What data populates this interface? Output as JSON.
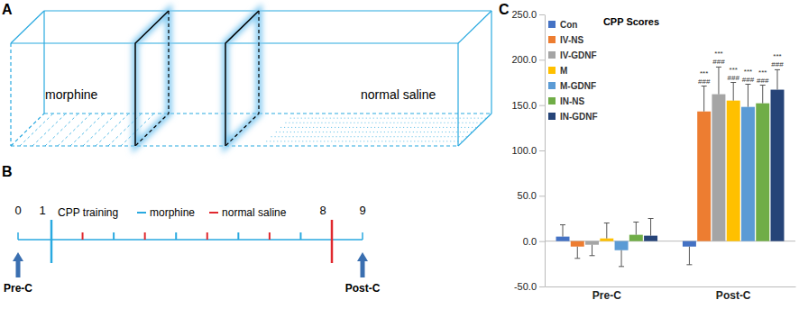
{
  "panel_a": {
    "label": "A",
    "left_chamber": "morphine",
    "right_chamber": "normal saline"
  },
  "panel_b": {
    "label": "B",
    "training_label": "CPP training",
    "legend": [
      {
        "name": "morphine",
        "color": "#29a9e0"
      },
      {
        "name": "normal saline",
        "color": "#e0282e"
      }
    ],
    "day_labels": [
      "0",
      "1",
      "8",
      "9"
    ],
    "sessions": [
      "morphine",
      "normal saline",
      "morphine",
      "normal saline",
      "morphine",
      "normal saline",
      "morphine",
      "normal saline",
      "morphine",
      "normal saline"
    ],
    "test_labels": [
      "Pre-C",
      "Post-C"
    ]
  },
  "panel_c": {
    "label": "C"
  },
  "chart_data": {
    "type": "bar",
    "title": "CPP Scores",
    "categories": [
      "Pre-C",
      "Post-C"
    ],
    "series": [
      {
        "name": "Con",
        "color": "#4472c4",
        "values": [
          5,
          -6
        ],
        "errors": [
          13,
          20
        ],
        "annotations": [
          null,
          null
        ]
      },
      {
        "name": "IV-NS",
        "color": "#ed7d31",
        "values": [
          -6,
          143
        ],
        "errors": [
          13,
          28
        ],
        "annotations": [
          null,
          [
            "***",
            "###"
          ]
        ]
      },
      {
        "name": "IV-GDNF",
        "color": "#a5a5a5",
        "values": [
          -4,
          162
        ],
        "errors": [
          12,
          30
        ],
        "annotations": [
          null,
          [
            "***",
            "###"
          ]
        ]
      },
      {
        "name": "M",
        "color": "#ffc000",
        "values": [
          3,
          155
        ],
        "errors": [
          17,
          20
        ],
        "annotations": [
          null,
          [
            "***",
            "###"
          ]
        ]
      },
      {
        "name": "M-GDNF",
        "color": "#5b9bd5",
        "values": [
          -10,
          148
        ],
        "errors": [
          18,
          25
        ],
        "annotations": [
          null,
          [
            "***",
            "###"
          ]
        ]
      },
      {
        "name": "IN-NS",
        "color": "#70ad47",
        "values": [
          7,
          152
        ],
        "errors": [
          14,
          20
        ],
        "annotations": [
          null,
          [
            "***",
            "###"
          ]
        ]
      },
      {
        "name": "IN-GDNF",
        "color": "#264478",
        "values": [
          6,
          167
        ],
        "errors": [
          19,
          22
        ],
        "annotations": [
          null,
          [
            "***",
            "###"
          ]
        ]
      }
    ],
    "ylim": [
      -50,
      250
    ],
    "yticks": [
      {
        "value": -50,
        "label": "-50.0"
      },
      {
        "value": 0,
        "label": "0.0"
      },
      {
        "value": 50,
        "label": "50.0"
      },
      {
        "value": 100,
        "label": "100.0"
      },
      {
        "value": 150,
        "label": "150.0"
      },
      {
        "value": 200,
        "label": "200.0"
      },
      {
        "value": 250,
        "label": "250.0"
      }
    ],
    "grid": false,
    "legend": "top-left"
  }
}
